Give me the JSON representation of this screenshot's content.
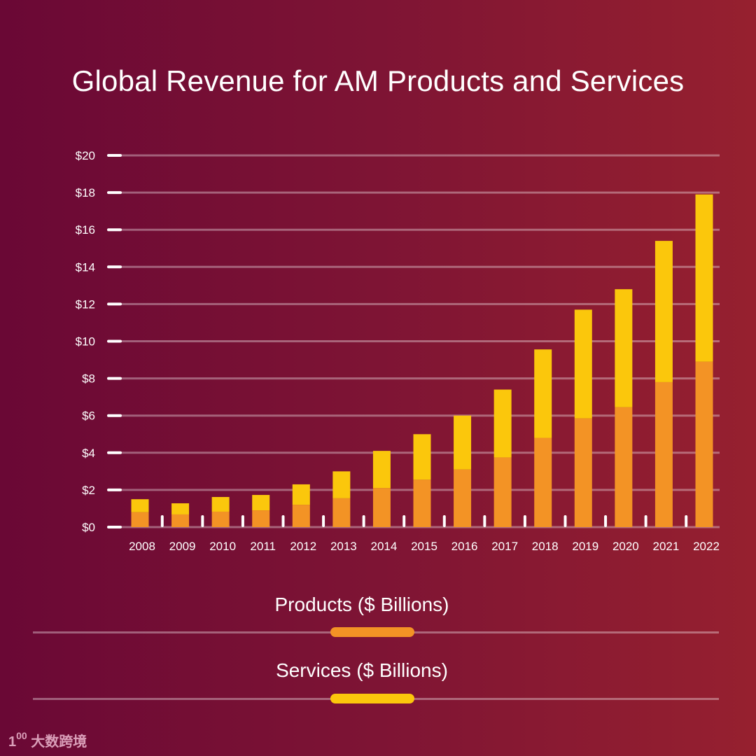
{
  "chart_data": {
    "type": "bar",
    "stacked": true,
    "title": "Global Revenue for AM Products and Services",
    "xlabel": "",
    "ylabel": "",
    "ylim": [
      0,
      20
    ],
    "yticks": [
      "$0",
      "$2",
      "$4",
      "$6",
      "$8",
      "$10",
      "$12",
      "$14",
      "$16",
      "$18",
      "$20"
    ],
    "ytick_values": [
      0,
      2,
      4,
      6,
      8,
      10,
      12,
      14,
      16,
      18,
      20
    ],
    "grid": true,
    "legend_position": "bottom",
    "categories": [
      "2008",
      "2009",
      "2010",
      "2011",
      "2012",
      "2013",
      "2014",
      "2015",
      "2016",
      "2017",
      "2018",
      "2019",
      "2020",
      "2021",
      "2022"
    ],
    "series": [
      {
        "name": "Products ($ Billions)",
        "color": "#f39325",
        "values": [
          0.8,
          0.68,
          0.83,
          0.9,
          1.2,
          1.55,
          2.1,
          2.55,
          3.1,
          3.75,
          4.8,
          5.85,
          6.45,
          7.8,
          8.9
        ]
      },
      {
        "name": "Services ($ Billions)",
        "color": "#fbc70c",
        "values": [
          0.7,
          0.6,
          0.79,
          0.83,
          1.1,
          1.45,
          2.0,
          2.45,
          2.9,
          3.65,
          4.76,
          5.85,
          6.35,
          7.6,
          9.0
        ]
      }
    ]
  },
  "watermark": "大数跨境"
}
